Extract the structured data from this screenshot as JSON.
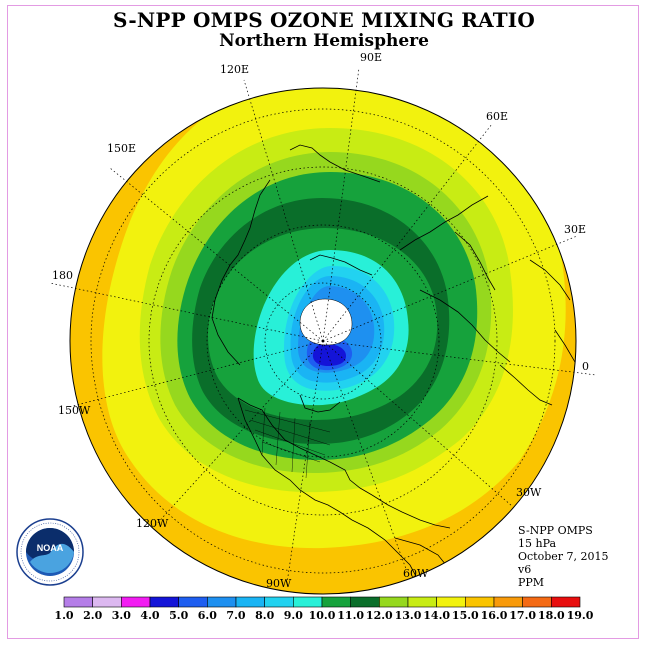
{
  "title": "S-NPP OMPS OZONE MIXING RATIO",
  "subtitle": "Northern Hemisphere",
  "longitude_labels": [
    "90E",
    "60E",
    "30E",
    "0",
    "30W",
    "60W",
    "90W",
    "120W",
    "150W",
    "180",
    "150E",
    "120E"
  ],
  "info": {
    "line1": "S-NPP OMPS",
    "line2": "15 hPa",
    "line3": "October 7, 2015",
    "line4": "v6",
    "line5": "PPM"
  },
  "colorbar": {
    "labels": [
      "1.0",
      "2.0",
      "3.0",
      "4.0",
      "5.0",
      "6.0",
      "7.0",
      "8.0",
      "9.0",
      "10.0",
      "11.0",
      "12.0",
      "13.0",
      "14.0",
      "15.0",
      "16.0",
      "17.0",
      "18.0",
      "19.0"
    ],
    "colors": [
      "#b57ee8",
      "#dcb8f0",
      "#f21cf2",
      "#1414d8",
      "#1e5ef0",
      "#1e90f0",
      "#1ab4f4",
      "#22d2f0",
      "#28f0d8",
      "#16a23c",
      "#0a6e2a",
      "#96d81e",
      "#c8ec14",
      "#f2f20e",
      "#fac400",
      "#f89a0a",
      "#f46a14",
      "#e80e0e",
      "#8e5a3a"
    ]
  },
  "logo": {
    "name": "NOAA",
    "ring_text": "NATIONAL OCEANIC AND ATMOSPHERIC ADMINISTRATION · U.S. DEPARTMENT OF COMMERCE"
  }
}
